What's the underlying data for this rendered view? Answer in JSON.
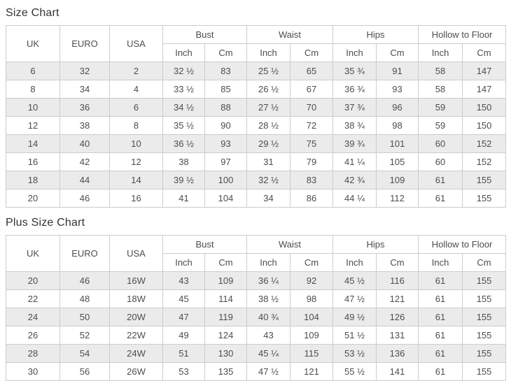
{
  "colors": {
    "row_alt_background": "#ebebeb",
    "row_background": "#ffffff",
    "border": "#cccccc",
    "cell_text": "#4d4d4d",
    "title_text": "#333333"
  },
  "chart_data": [
    {
      "type": "table",
      "title": "Size Chart",
      "columns_simple": [
        "UK",
        "EURO",
        "USA"
      ],
      "columns_grouped": [
        {
          "label": "Bust",
          "sub": [
            "Inch",
            "Cm"
          ]
        },
        {
          "label": "Waist",
          "sub": [
            "Inch",
            "Cm"
          ]
        },
        {
          "label": "Hips",
          "sub": [
            "Inch",
            "Cm"
          ]
        },
        {
          "label": "Hollow to Floor",
          "sub": [
            "Inch",
            "Cm"
          ]
        }
      ],
      "rows": [
        [
          "6",
          "32",
          "2",
          "32 ½",
          "83",
          "25 ½",
          "65",
          "35 ¾",
          "91",
          "58",
          "147"
        ],
        [
          "8",
          "34",
          "4",
          "33 ½",
          "85",
          "26 ½",
          "67",
          "36 ¾",
          "93",
          "58",
          "147"
        ],
        [
          "10",
          "36",
          "6",
          "34 ½",
          "88",
          "27 ½",
          "70",
          "37 ¾",
          "96",
          "59",
          "150"
        ],
        [
          "12",
          "38",
          "8",
          "35 ½",
          "90",
          "28 ½",
          "72",
          "38 ¾",
          "98",
          "59",
          "150"
        ],
        [
          "14",
          "40",
          "10",
          "36 ½",
          "93",
          "29 ½",
          "75",
          "39 ¾",
          "101",
          "60",
          "152"
        ],
        [
          "16",
          "42",
          "12",
          "38",
          "97",
          "31",
          "79",
          "41 ¼",
          "105",
          "60",
          "152"
        ],
        [
          "18",
          "44",
          "14",
          "39 ½",
          "100",
          "32 ½",
          "83",
          "42 ¾",
          "109",
          "61",
          "155"
        ],
        [
          "20",
          "46",
          "16",
          "41",
          "104",
          "34",
          "86",
          "44 ¼",
          "112",
          "61",
          "155"
        ]
      ]
    },
    {
      "type": "table",
      "title": "Plus Size Chart",
      "columns_simple": [
        "UK",
        "EURO",
        "USA"
      ],
      "columns_grouped": [
        {
          "label": "Bust",
          "sub": [
            "Inch",
            "Cm"
          ]
        },
        {
          "label": "Waist",
          "sub": [
            "Inch",
            "Cm"
          ]
        },
        {
          "label": "Hips",
          "sub": [
            "Inch",
            "Cm"
          ]
        },
        {
          "label": "Hollow to Floor",
          "sub": [
            "Inch",
            "Cm"
          ]
        }
      ],
      "rows": [
        [
          "20",
          "46",
          "16W",
          "43",
          "109",
          "36 ¼",
          "92",
          "45 ½",
          "116",
          "61",
          "155"
        ],
        [
          "22",
          "48",
          "18W",
          "45",
          "114",
          "38 ½",
          "98",
          "47 ½",
          "121",
          "61",
          "155"
        ],
        [
          "24",
          "50",
          "20W",
          "47",
          "119",
          "40 ¾",
          "104",
          "49 ½",
          "126",
          "61",
          "155"
        ],
        [
          "26",
          "52",
          "22W",
          "49",
          "124",
          "43",
          "109",
          "51 ½",
          "131",
          "61",
          "155"
        ],
        [
          "28",
          "54",
          "24W",
          "51",
          "130",
          "45 ¼",
          "115",
          "53 ½",
          "136",
          "61",
          "155"
        ],
        [
          "30",
          "56",
          "26W",
          "53",
          "135",
          "47 ½",
          "121",
          "55 ½",
          "141",
          "61",
          "155"
        ]
      ]
    }
  ]
}
